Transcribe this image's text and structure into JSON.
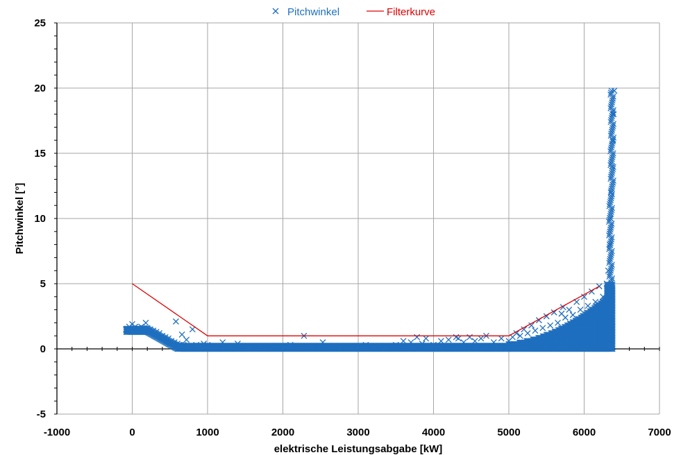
{
  "chart_data": {
    "type": "scatter",
    "xlabel": "elektrische Leistungsabgabe [kW]",
    "ylabel": "Pitchwinkel  [°]",
    "xlim": [
      -1000,
      7000
    ],
    "ylim": [
      -5,
      25
    ],
    "x_ticks": [
      "-1000",
      "0",
      "1000",
      "2000",
      "3000",
      "4000",
      "5000",
      "6000",
      "7000"
    ],
    "y_ticks": [
      "-5",
      "0",
      "5",
      "10",
      "15",
      "20",
      "25"
    ],
    "grid": true,
    "legend_position": "top-center",
    "legend": [
      "Pitchwinkel",
      "Filterkurve"
    ],
    "series": [
      {
        "name": "Pitchwinkel",
        "kind": "scatter",
        "marker": "x",
        "color": "#1F6FBF",
        "x": [
          -80,
          -40,
          0,
          40,
          80,
          120,
          160,
          180,
          200,
          240,
          280,
          320,
          360,
          400,
          440,
          480,
          520,
          560,
          580,
          600,
          620,
          640,
          660,
          680,
          700,
          720,
          760,
          800,
          850,
          900,
          950,
          1000,
          1100,
          1200,
          1300,
          1400,
          1500,
          1700,
          1900,
          2100,
          2200,
          2280,
          2400,
          2530,
          2700,
          2900,
          3100,
          3300,
          3500,
          3600,
          3700,
          3780,
          3850,
          3900,
          4000,
          4100,
          4200,
          4300,
          4330,
          4400,
          4480,
          4550,
          4630,
          4700,
          4800,
          4900,
          5000,
          5050,
          5100,
          5150,
          5200,
          5250,
          5300,
          5350,
          5400,
          5450,
          5500,
          5550,
          5600,
          5650,
          5700,
          5720,
          5750,
          5800,
          5850,
          5900,
          5950,
          6000,
          6050,
          6100,
          6150,
          6200,
          6250,
          6300,
          6320,
          6340,
          6350,
          6360,
          6370,
          6380,
          6390,
          6400
        ],
        "y": [
          1.5,
          1.7,
          1.9,
          1.7,
          1.6,
          1.7,
          1.6,
          2.0,
          1.6,
          1.5,
          1.4,
          1.3,
          1.2,
          1.0,
          0.9,
          0.8,
          0.6,
          0.5,
          2.1,
          0.4,
          0.3,
          0.3,
          1.1,
          0.3,
          0.2,
          0.7,
          0.2,
          1.5,
          0.3,
          0.2,
          0.4,
          0.3,
          0.2,
          0.5,
          0.2,
          0.4,
          0.1,
          0.2,
          0.1,
          0.3,
          0.2,
          1.0,
          0.2,
          0.5,
          0.2,
          0.1,
          0.3,
          0.2,
          0.3,
          0.6,
          0.5,
          0.9,
          0.4,
          0.8,
          0.3,
          0.6,
          0.7,
          0.9,
          0.8,
          0.5,
          0.9,
          0.6,
          0.8,
          1.0,
          0.5,
          0.8,
          0.6,
          0.9,
          1.2,
          1.0,
          1.5,
          1.2,
          1.8,
          1.4,
          2.2,
          1.6,
          2.5,
          1.8,
          2.8,
          2.0,
          2.7,
          3.2,
          2.4,
          3.0,
          2.6,
          3.6,
          3.0,
          4.0,
          3.3,
          4.4,
          3.6,
          4.8,
          4.0,
          5.0,
          6.0,
          8.0,
          10.0,
          12.0,
          14.0,
          16.0,
          18.0,
          19.8
        ]
      },
      {
        "name": "Filterkurve",
        "kind": "line",
        "color": "#E00000",
        "x": [
          0,
          1000,
          5000,
          6200
        ],
        "y": [
          5,
          1,
          1,
          4.8
        ]
      }
    ]
  }
}
